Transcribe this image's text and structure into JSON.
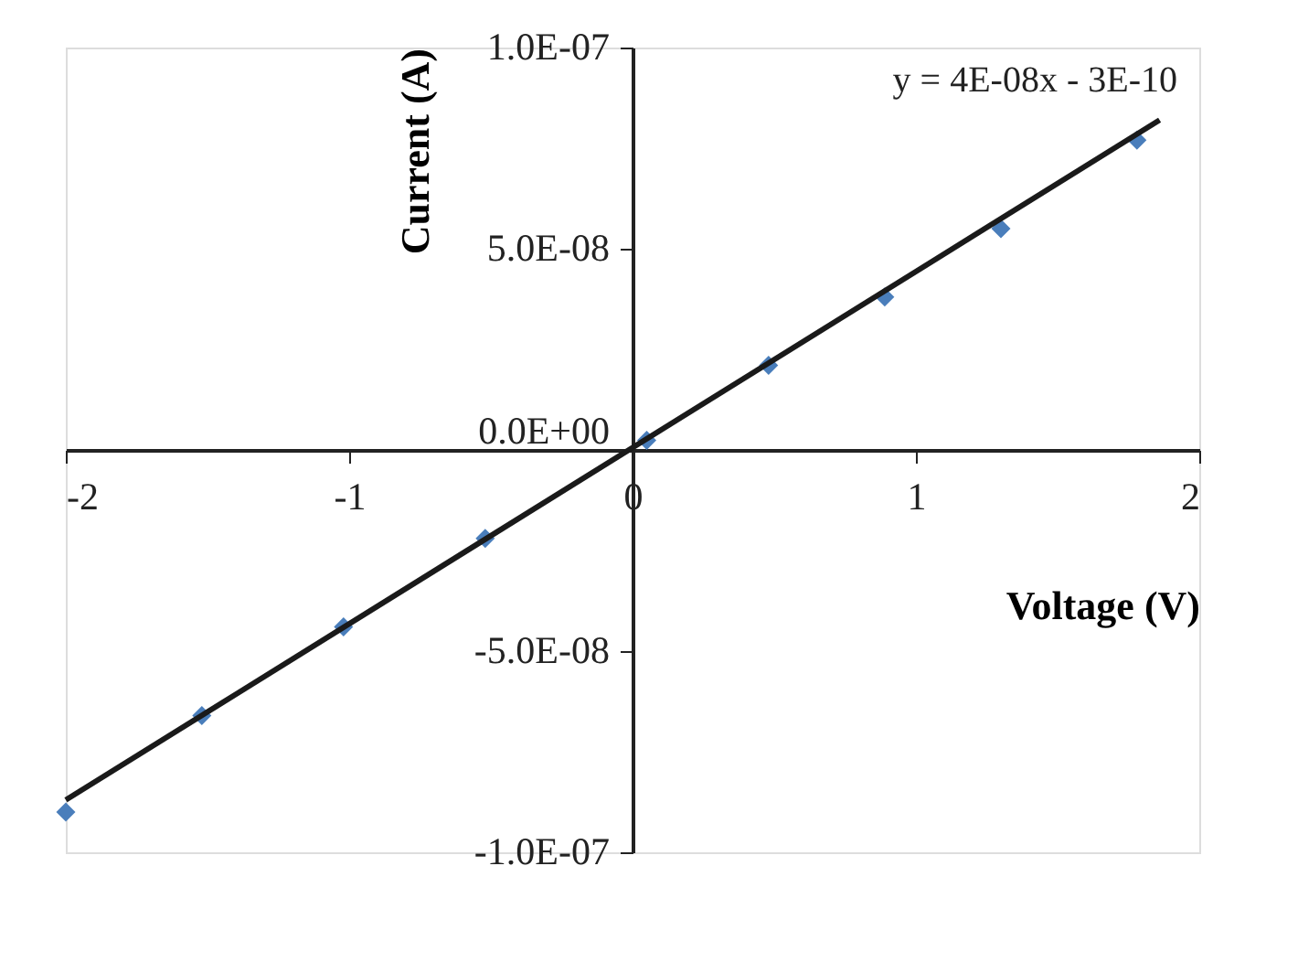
{
  "chart_data": {
    "type": "scatter",
    "xlabel": "Voltage (V)",
    "ylabel": "Current (A)",
    "annotations": [
      "y = 4E-08x - 3E-10"
    ],
    "series": [
      {
        "color": "#4a7ebb",
        "marker": "diamond",
        "x": [
          -2.0,
          -1.52,
          -1.02,
          -0.52,
          0.05,
          0.48,
          0.89,
          1.3,
          1.78
        ],
        "values": [
          -9e-08,
          -6.6e-08,
          -4.4e-08,
          -2.2e-08,
          2.4e-09,
          2.1e-08,
          3.8e-08,
          5.5e-08,
          7.7e-08
        ]
      },
      {
        "type": "line",
        "color": "#1a1a1a",
        "marker": "none",
        "line_style": "solid",
        "x": [
          -2.0,
          1.86
        ],
        "values": [
          -8.7e-08,
          8.2e-08
        ]
      }
    ],
    "xlim": [
      -2,
      2
    ],
    "xticks": [
      -2,
      -1,
      0,
      1,
      2
    ],
    "ylim": [
      -1e-07,
      1e-07
    ],
    "yticks": [
      {
        "value": -1e-07,
        "label": "-1.0E-07"
      },
      {
        "value": -5e-08,
        "label": "-5.0E-08"
      },
      {
        "value": 0,
        "label": "0.0E+00"
      },
      {
        "value": 5e-08,
        "label": "5.0E-08"
      },
      {
        "value": 1e-07,
        "label": "1.0E-07"
      }
    ],
    "grid": false
  }
}
